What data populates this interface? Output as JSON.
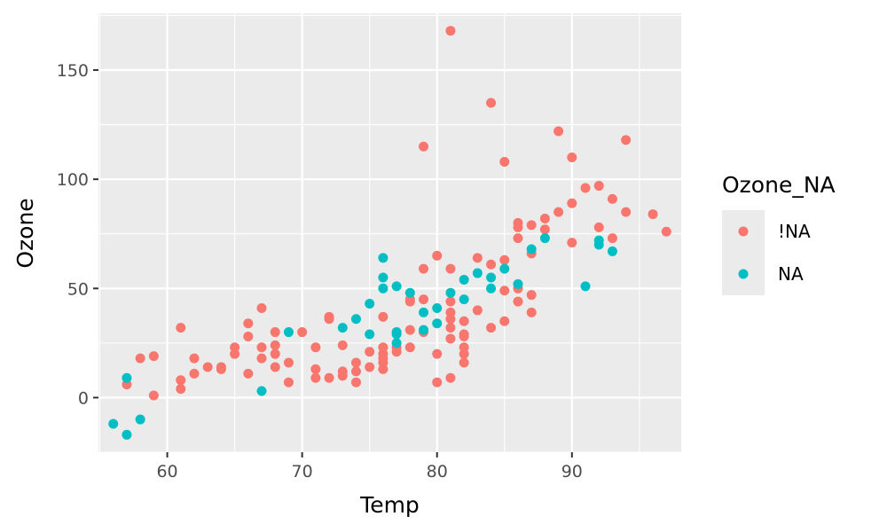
{
  "chart_data": {
    "type": "scatter",
    "xlabel": "Temp",
    "ylabel": "Ozone",
    "xlim": [
      54.9,
      98.1
    ],
    "ylim": [
      -25,
      176
    ],
    "xticks": [
      60,
      70,
      80,
      90
    ],
    "xtick_labels": [
      "60",
      "70",
      "80",
      "90"
    ],
    "yticks": [
      0,
      50,
      100,
      150
    ],
    "ytick_labels": [
      "0",
      "50",
      "100",
      "150"
    ],
    "grid": true,
    "legend": {
      "title": "Ozone_NA",
      "position": "right"
    },
    "series": [
      {
        "name": "!NA",
        "color": "#F8766D",
        "points": [
          [
            57,
            6
          ],
          [
            58,
            18
          ],
          [
            59,
            1
          ],
          [
            59,
            19
          ],
          [
            61,
            4
          ],
          [
            61,
            8
          ],
          [
            61,
            32
          ],
          [
            62,
            11
          ],
          [
            62,
            18
          ],
          [
            63,
            14
          ],
          [
            64,
            13
          ],
          [
            64,
            14
          ],
          [
            65,
            20
          ],
          [
            65,
            23
          ],
          [
            66,
            11
          ],
          [
            66,
            28
          ],
          [
            66,
            34
          ],
          [
            67,
            18
          ],
          [
            67,
            23
          ],
          [
            67,
            41
          ],
          [
            68,
            14
          ],
          [
            68,
            20
          ],
          [
            68,
            24
          ],
          [
            68,
            30
          ],
          [
            69,
            7
          ],
          [
            69,
            16
          ],
          [
            70,
            30
          ],
          [
            71,
            9
          ],
          [
            71,
            13
          ],
          [
            71,
            23
          ],
          [
            72,
            9
          ],
          [
            72,
            36
          ],
          [
            72,
            37
          ],
          [
            73,
            10
          ],
          [
            73,
            12
          ],
          [
            73,
            24
          ],
          [
            74,
            7
          ],
          [
            74,
            12
          ],
          [
            74,
            16
          ],
          [
            75,
            14
          ],
          [
            75,
            21
          ],
          [
            76,
            13
          ],
          [
            76,
            16
          ],
          [
            76,
            18
          ],
          [
            76,
            20
          ],
          [
            76,
            23
          ],
          [
            76,
            37
          ],
          [
            77,
            21
          ],
          [
            77,
            23
          ],
          [
            78,
            23
          ],
          [
            78,
            31
          ],
          [
            78,
            44
          ],
          [
            78,
            45
          ],
          [
            79,
            30
          ],
          [
            79,
            45
          ],
          [
            79,
            59
          ],
          [
            79,
            115
          ],
          [
            80,
            7
          ],
          [
            80,
            20
          ],
          [
            80,
            65
          ],
          [
            81,
            9
          ],
          [
            81,
            27
          ],
          [
            81,
            32
          ],
          [
            81,
            36
          ],
          [
            81,
            39
          ],
          [
            81,
            44
          ],
          [
            81,
            59
          ],
          [
            81,
            168
          ],
          [
            82,
            16
          ],
          [
            82,
            20
          ],
          [
            82,
            23
          ],
          [
            82,
            28
          ],
          [
            82,
            29
          ],
          [
            82,
            35
          ],
          [
            83,
            40
          ],
          [
            83,
            64
          ],
          [
            84,
            32
          ],
          [
            84,
            61
          ],
          [
            84,
            135
          ],
          [
            85,
            35
          ],
          [
            85,
            49
          ],
          [
            85,
            63
          ],
          [
            85,
            108
          ],
          [
            86,
            44
          ],
          [
            86,
            50
          ],
          [
            86,
            73
          ],
          [
            86,
            78
          ],
          [
            86,
            80
          ],
          [
            87,
            39
          ],
          [
            87,
            47
          ],
          [
            87,
            66
          ],
          [
            87,
            79
          ],
          [
            88,
            77
          ],
          [
            88,
            82
          ],
          [
            89,
            85
          ],
          [
            89,
            122
          ],
          [
            90,
            71
          ],
          [
            90,
            89
          ],
          [
            90,
            110
          ],
          [
            91,
            96
          ],
          [
            92,
            78
          ],
          [
            92,
            97
          ],
          [
            93,
            73
          ],
          [
            93,
            91
          ],
          [
            94,
            85
          ],
          [
            94,
            118
          ],
          [
            96,
            84
          ],
          [
            97,
            76
          ]
        ]
      },
      {
        "name": "NA",
        "color": "#00BFC4",
        "points": [
          [
            56,
            -12
          ],
          [
            57,
            -17
          ],
          [
            57,
            9
          ],
          [
            58,
            -10
          ],
          [
            67,
            3
          ],
          [
            69,
            30
          ],
          [
            73,
            32
          ],
          [
            74,
            36
          ],
          [
            75,
            29
          ],
          [
            75,
            43
          ],
          [
            76,
            50
          ],
          [
            76,
            55
          ],
          [
            76,
            64
          ],
          [
            77,
            25
          ],
          [
            77,
            29
          ],
          [
            77,
            30
          ],
          [
            77,
            51
          ],
          [
            78,
            48
          ],
          [
            79,
            31
          ],
          [
            79,
            39
          ],
          [
            80,
            34
          ],
          [
            80,
            41
          ],
          [
            81,
            48
          ],
          [
            82,
            45
          ],
          [
            82,
            54
          ],
          [
            83,
            57
          ],
          [
            84,
            50
          ],
          [
            84,
            55
          ],
          [
            85,
            59
          ],
          [
            86,
            52
          ],
          [
            87,
            68
          ],
          [
            88,
            73
          ],
          [
            91,
            51
          ],
          [
            92,
            70
          ],
          [
            92,
            72
          ],
          [
            93,
            67
          ]
        ]
      }
    ]
  }
}
